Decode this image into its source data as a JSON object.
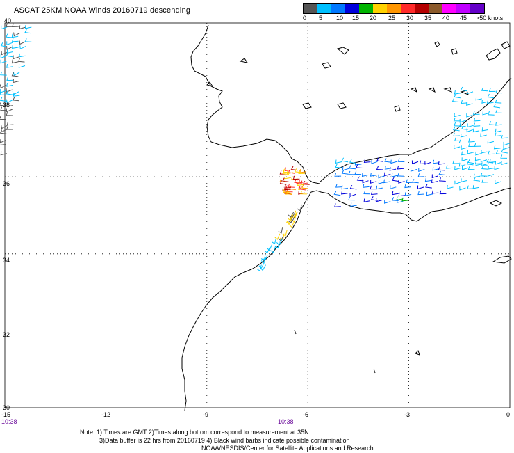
{
  "title": "ASCAT 25KM NOAA Winds 20160719 descending",
  "legend": {
    "colors": [
      "#555555",
      "#00c0ff",
      "#0078ff",
      "#0000dc",
      "#00b400",
      "#ffd200",
      "#ff9600",
      "#ff2a2a",
      "#b40000",
      "#8b5a2b",
      "#ff00ff",
      "#c000ff",
      "#6400c8"
    ],
    "labels": [
      "0",
      "5",
      "10",
      "15",
      "20",
      "25",
      "30",
      "35",
      "40",
      "45",
      ">50 knots"
    ]
  },
  "map": {
    "lon_range": [
      -15,
      0
    ],
    "lat_range": [
      30,
      40
    ],
    "x_ticks": [
      "-15",
      "-12",
      "-9",
      "-6",
      "-3",
      "0"
    ],
    "y_ticks": [
      "40",
      "38",
      "36",
      "34",
      "32",
      "30"
    ],
    "grid": "dotted",
    "land_color": "#ffffff",
    "coast_color": "#000000"
  },
  "pass_times": [
    "10:38",
    "10:38"
  ],
  "note": {
    "line1": "Note: 1) Times are GMT 2)Times along bottom correspond to measurement at 35N",
    "line2": "3)Data buffer is 22 hrs from 20160719 4) Black wind barbs indicate possible contamination",
    "line3": "NOAA/NESDIS/Center for Satellite Applications and Research"
  }
}
